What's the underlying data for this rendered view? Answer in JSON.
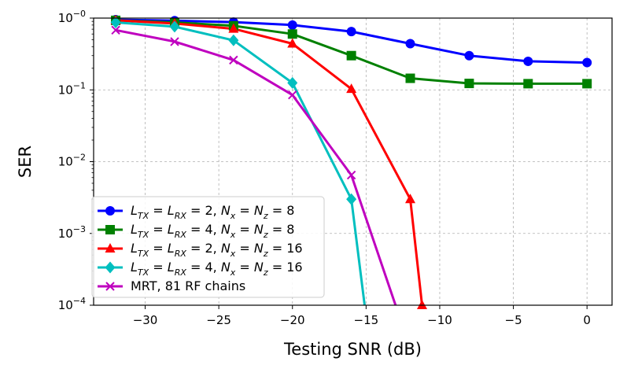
{
  "chart_data": {
    "type": "line",
    "title": "",
    "xlabel": "Testing SNR (dB)",
    "ylabel": "SER",
    "yscale": "log",
    "xlim": [
      -33.5,
      1.7
    ],
    "ylim": [
      0.0001,
      1
    ],
    "grid": true,
    "legend_position": "lower-left",
    "x_ticks": [
      -30,
      -25,
      -20,
      -15,
      -10,
      -5,
      0
    ],
    "x_tick_labels": [
      "−30",
      "−25",
      "−20",
      "−15",
      "−10",
      "−5",
      "0"
    ],
    "y_ticks": [
      {
        "value": 1,
        "base": "10",
        "exp": "−0"
      },
      {
        "value": 0.1,
        "base": "10",
        "exp": "−1"
      },
      {
        "value": 0.01,
        "base": "10",
        "exp": "−2"
      },
      {
        "value": 0.001,
        "base": "10",
        "exp": "−3"
      },
      {
        "value": 0.0001,
        "base": "10",
        "exp": "−4"
      }
    ],
    "series": [
      {
        "name": "L_TX = L_RX = 2, N_x = N_z = 8",
        "legend": {
          "l1": "2",
          "n1": "8"
        },
        "color": "#0000ff",
        "marker": "circle",
        "x": [
          -32,
          -28,
          -24,
          -20,
          -16,
          -12,
          -8,
          -4,
          0
        ],
        "y": [
          0.95,
          0.92,
          0.88,
          0.8,
          0.65,
          0.44,
          0.3,
          0.25,
          0.24
        ]
      },
      {
        "name": "L_TX = L_RX = 4, N_x = N_z = 8",
        "legend": {
          "l1": "4",
          "n1": "8"
        },
        "color": "#008000",
        "marker": "square",
        "x": [
          -32,
          -28,
          -24,
          -20,
          -16,
          -12,
          -8,
          -4,
          0
        ],
        "y": [
          0.93,
          0.87,
          0.78,
          0.6,
          0.3,
          0.145,
          0.123,
          0.122,
          0.122
        ]
      },
      {
        "name": "L_TX = L_RX = 2, N_x = N_z = 16",
        "legend": {
          "l1": "2",
          "n1": "16"
        },
        "color": "#ff0000",
        "marker": "triangle",
        "x": [
          -32,
          -28,
          -24,
          -20,
          -16,
          -12,
          -11.2
        ],
        "y": [
          0.93,
          0.84,
          0.71,
          0.44,
          0.103,
          0.003,
          0.0001
        ]
      },
      {
        "name": "L_TX = L_RX = 4, N_x = N_z = 16",
        "legend": {
          "l1": "4",
          "n1": "16"
        },
        "color": "#00bfbf",
        "marker": "diamond",
        "x": [
          -32,
          -28,
          -24,
          -20,
          -16,
          -15.1
        ],
        "y": [
          0.87,
          0.76,
          0.49,
          0.125,
          0.003,
          0.0001
        ],
        "marker_mask": [
          true,
          true,
          true,
          true,
          true,
          false
        ]
      },
      {
        "name": "MRT, 81 RF chains",
        "legend": {
          "text": "MRT, 81 RF chains"
        },
        "color": "#bf00bf",
        "marker": "x",
        "x": [
          -32,
          -28,
          -24,
          -20,
          -16,
          -13
        ],
        "y": [
          0.68,
          0.47,
          0.26,
          0.085,
          0.0065,
          0.0001
        ],
        "marker_mask": [
          true,
          true,
          true,
          true,
          true,
          false
        ]
      }
    ]
  }
}
